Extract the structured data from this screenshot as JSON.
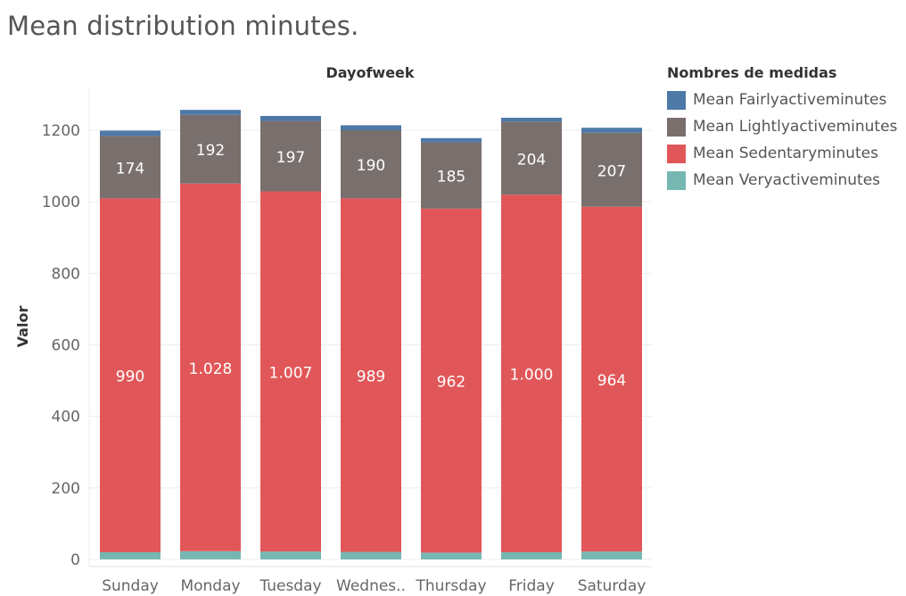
{
  "title": "Mean distribution minutes.",
  "chart_data": {
    "type": "bar",
    "stacked": true,
    "column_header": "Dayofweek",
    "xlabel": "",
    "ylabel": "Valor",
    "ylim": [
      0,
      1300
    ],
    "yticks": [
      0,
      200,
      400,
      600,
      800,
      1000,
      1200
    ],
    "grid": true,
    "categories": [
      "Sunday",
      "Monday",
      "Tuesday",
      "Wednes..",
      "Thursday",
      "Friday",
      "Saturday"
    ],
    "series": [
      {
        "name": "Mean Veryactiveminutes",
        "color": "#76b7b2",
        "values": [
          20,
          23,
          22,
          21,
          19,
          20,
          22
        ],
        "labels": [
          "",
          "",
          "",
          "",
          "",
          "",
          ""
        ]
      },
      {
        "name": "Mean Sedentaryminutes",
        "color": "#e15759",
        "values": [
          990,
          1028,
          1007,
          989,
          962,
          1000,
          964
        ],
        "labels": [
          "990",
          "1.028",
          "1.007",
          "989",
          "962",
          "1.000",
          "964"
        ]
      },
      {
        "name": "Mean Lightlyactiveminutes",
        "color": "#79706e",
        "values": [
          174,
          192,
          197,
          190,
          185,
          204,
          207
        ],
        "labels": [
          "174",
          "192",
          "197",
          "190",
          "185",
          "204",
          "207"
        ]
      },
      {
        "name": "Mean Fairlyactiveminutes",
        "color": "#4e79a7",
        "values": [
          15,
          14,
          14,
          14,
          12,
          11,
          14
        ],
        "labels": [
          "",
          "",
          "",
          "",
          "",
          "",
          ""
        ]
      }
    ],
    "legend": {
      "title": "Nombres de medidas",
      "position": "right",
      "items": [
        {
          "name": "Mean Fairlyactiveminutes",
          "color": "#4e79a7"
        },
        {
          "name": "Mean Lightlyactiveminutes",
          "color": "#79706e"
        },
        {
          "name": "Mean Sedentaryminutes",
          "color": "#e15759"
        },
        {
          "name": "Mean Veryactiveminutes",
          "color": "#76b7b2"
        }
      ]
    }
  }
}
